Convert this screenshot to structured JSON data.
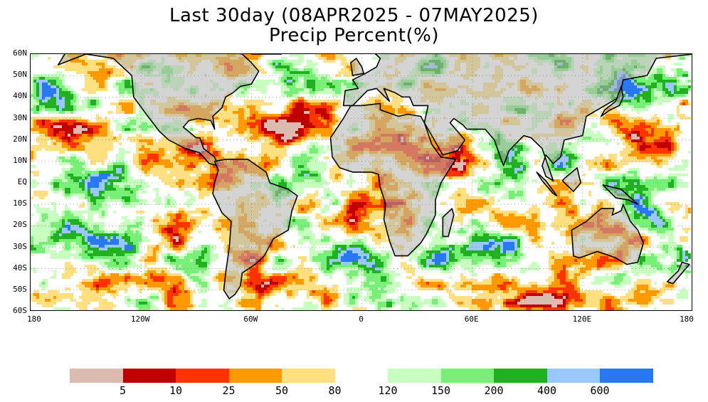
{
  "title_line1": "Last 30day (08APR2025 - 07MAY2025)",
  "title_line2": "Precip Percent(%)",
  "y_axis_labels": [
    "60N",
    "50N",
    "40N",
    "30N",
    "20N",
    "10N",
    "EQ",
    "10S",
    "20S",
    "30S",
    "40S",
    "50S",
    "60S"
  ],
  "x_axis_labels": [
    "180",
    "120W",
    "60W",
    "0",
    "60E",
    "120E",
    "180"
  ],
  "colorbar": {
    "dry_colors": [
      "#dcbcb0",
      "#c00000",
      "#ff3300",
      "#ff9900",
      "#ffe080"
    ],
    "wet_colors": [
      "#c8ffc0",
      "#78f078",
      "#20b020",
      "#98c8ff",
      "#2878f0"
    ],
    "labels": [
      "5",
      "10",
      "25",
      "50",
      "80",
      "120",
      "150",
      "200",
      "400",
      "600"
    ]
  },
  "map_colors": {
    "ocean_normal": "#ffffff",
    "land": "#b0b0b0",
    "dry_extreme": "#dcbcb0",
    "dry_very": "#c00000",
    "dry_strong": "#ff3300",
    "dry_moderate": "#ff9900",
    "dry_light": "#ffe080",
    "wet_light": "#c8ffc0",
    "wet_moderate": "#78f078",
    "wet_strong": "#20b020",
    "wet_very": "#98c8ff",
    "wet_extreme": "#2878f0"
  }
}
